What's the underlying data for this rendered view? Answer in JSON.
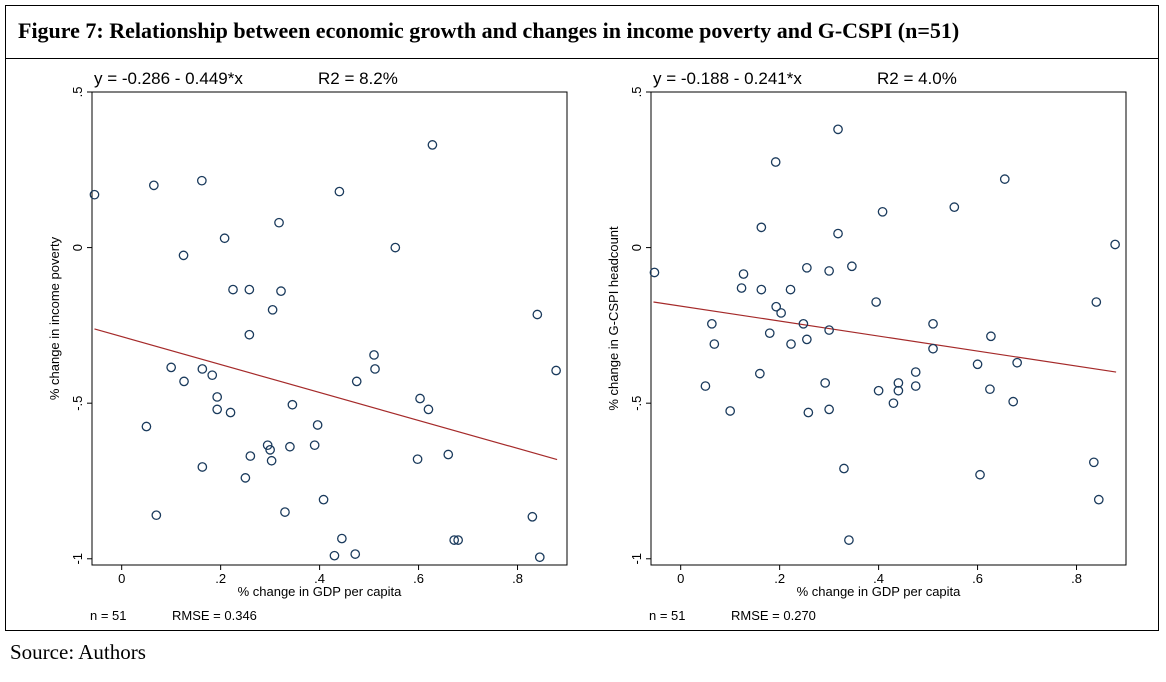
{
  "figure": {
    "title": "Figure 7:   Relationship between economic growth and changes in income poverty and G-CSPI (n=51)",
    "source": "Source: Authors"
  },
  "chart_data": [
    {
      "type": "scatter",
      "equation": "y = -0.286 - 0.449*x",
      "r2": "R2 = 8.2%",
      "n_text": "n = 51",
      "rmse_text": "RMSE = 0.346",
      "xlabel": "% change in GDP per capita",
      "ylabel": "% change in income poverty",
      "xlim": [
        -0.06,
        0.9
      ],
      "ylim": [
        -1.02,
        0.5
      ],
      "xticks": [
        0,
        0.2,
        0.4,
        0.6,
        0.8
      ],
      "xtick_labels": [
        "0",
        ".2",
        ".4",
        ".6",
        ".8"
      ],
      "yticks": [
        -1,
        -0.5,
        0,
        0.5
      ],
      "ytick_labels": [
        "-1",
        "-.5",
        "0",
        ".5"
      ],
      "fit": {
        "intercept": -0.286,
        "slope": -0.449,
        "x_range": [
          -0.055,
          0.88
        ]
      },
      "points": [
        [
          -0.055,
          0.17
        ],
        [
          0.065,
          0.2
        ],
        [
          0.162,
          0.215
        ],
        [
          0.44,
          0.18
        ],
        [
          0.628,
          0.33
        ],
        [
          0.208,
          0.03
        ],
        [
          0.125,
          -0.025
        ],
        [
          0.318,
          0.08
        ],
        [
          0.553,
          0.0
        ],
        [
          0.225,
          -0.135
        ],
        [
          0.258,
          -0.135
        ],
        [
          0.322,
          -0.14
        ],
        [
          0.305,
          -0.2
        ],
        [
          0.258,
          -0.28
        ],
        [
          0.84,
          -0.215
        ],
        [
          0.51,
          -0.345
        ],
        [
          0.512,
          -0.39
        ],
        [
          0.1,
          -0.385
        ],
        [
          0.163,
          -0.39
        ],
        [
          0.183,
          -0.41
        ],
        [
          0.126,
          -0.43
        ],
        [
          0.475,
          -0.43
        ],
        [
          0.878,
          -0.395
        ],
        [
          0.193,
          -0.48
        ],
        [
          0.603,
          -0.485
        ],
        [
          0.193,
          -0.52
        ],
        [
          0.22,
          -0.53
        ],
        [
          0.345,
          -0.505
        ],
        [
          0.62,
          -0.52
        ],
        [
          0.05,
          -0.575
        ],
        [
          0.396,
          -0.57
        ],
        [
          0.295,
          -0.635
        ],
        [
          0.3,
          -0.65
        ],
        [
          0.34,
          -0.64
        ],
        [
          0.39,
          -0.635
        ],
        [
          0.26,
          -0.67
        ],
        [
          0.303,
          -0.685
        ],
        [
          0.163,
          -0.705
        ],
        [
          0.598,
          -0.68
        ],
        [
          0.66,
          -0.665
        ],
        [
          0.25,
          -0.74
        ],
        [
          0.07,
          -0.86
        ],
        [
          0.33,
          -0.85
        ],
        [
          0.408,
          -0.81
        ],
        [
          0.445,
          -0.935
        ],
        [
          0.672,
          -0.94
        ],
        [
          0.68,
          -0.94
        ],
        [
          0.83,
          -0.865
        ],
        [
          0.43,
          -0.99
        ],
        [
          0.472,
          -0.985
        ],
        [
          0.845,
          -0.995
        ]
      ]
    },
    {
      "type": "scatter",
      "equation": "y = -0.188 - 0.241*x",
      "r2": "R2 = 4.0%",
      "n_text": "n = 51",
      "rmse_text": "RMSE = 0.270",
      "xlabel": "% change in GDP per capita",
      "ylabel": "% change in G-CSPI headcount",
      "xlim": [
        -0.06,
        0.9
      ],
      "ylim": [
        -1.02,
        0.5
      ],
      "xticks": [
        0,
        0.2,
        0.4,
        0.6,
        0.8
      ],
      "xtick_labels": [
        "0",
        ".2",
        ".4",
        ".6",
        ".8"
      ],
      "yticks": [
        -1,
        -0.5,
        0,
        0.5
      ],
      "ytick_labels": [
        "-1",
        "-.5",
        "0",
        ".5"
      ],
      "fit": {
        "intercept": -0.188,
        "slope": -0.241,
        "x_range": [
          -0.055,
          0.88
        ]
      },
      "points": [
        [
          0.318,
          0.38
        ],
        [
          0.192,
          0.275
        ],
        [
          0.655,
          0.22
        ],
        [
          0.553,
          0.13
        ],
        [
          0.408,
          0.115
        ],
        [
          0.163,
          0.065
        ],
        [
          0.318,
          0.045
        ],
        [
          0.878,
          0.01
        ],
        [
          -0.053,
          -0.08
        ],
        [
          0.127,
          -0.085
        ],
        [
          0.255,
          -0.065
        ],
        [
          0.3,
          -0.075
        ],
        [
          0.346,
          -0.06
        ],
        [
          0.123,
          -0.13
        ],
        [
          0.163,
          -0.135
        ],
        [
          0.222,
          -0.135
        ],
        [
          0.395,
          -0.175
        ],
        [
          0.84,
          -0.175
        ],
        [
          0.193,
          -0.19
        ],
        [
          0.203,
          -0.21
        ],
        [
          0.063,
          -0.245
        ],
        [
          0.248,
          -0.245
        ],
        [
          0.51,
          -0.245
        ],
        [
          0.18,
          -0.275
        ],
        [
          0.3,
          -0.265
        ],
        [
          0.255,
          -0.295
        ],
        [
          0.627,
          -0.285
        ],
        [
          0.068,
          -0.31
        ],
        [
          0.223,
          -0.31
        ],
        [
          0.51,
          -0.325
        ],
        [
          0.6,
          -0.375
        ],
        [
          0.68,
          -0.37
        ],
        [
          0.16,
          -0.405
        ],
        [
          0.475,
          -0.4
        ],
        [
          0.05,
          -0.445
        ],
        [
          0.292,
          -0.435
        ],
        [
          0.44,
          -0.435
        ],
        [
          0.475,
          -0.445
        ],
        [
          0.44,
          -0.46
        ],
        [
          0.4,
          -0.46
        ],
        [
          0.625,
          -0.455
        ],
        [
          0.1,
          -0.525
        ],
        [
          0.258,
          -0.53
        ],
        [
          0.3,
          -0.52
        ],
        [
          0.43,
          -0.5
        ],
        [
          0.672,
          -0.495
        ],
        [
          0.605,
          -0.73
        ],
        [
          0.33,
          -0.71
        ],
        [
          0.835,
          -0.69
        ],
        [
          0.845,
          -0.81
        ],
        [
          0.34,
          -0.94
        ]
      ]
    }
  ]
}
